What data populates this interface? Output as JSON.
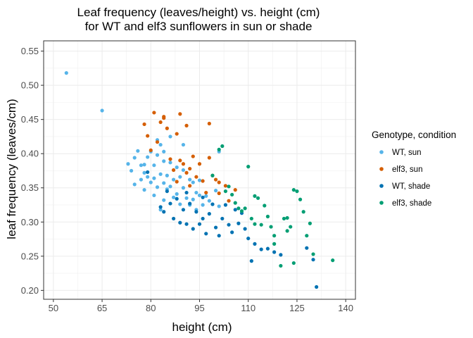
{
  "chart_data": {
    "type": "scatter",
    "title": "Leaf frequency (leaves/height) vs. height (cm)",
    "subtitle": "for WT and elf3 sunflowers in sun or shade",
    "xlabel": "height (cm)",
    "ylabel": "leaf frequency (leaves/cm)",
    "xlim": [
      47,
      143
    ],
    "ylim": [
      0.187,
      0.565
    ],
    "x_ticks": [
      50,
      65,
      80,
      95,
      110,
      125,
      140
    ],
    "x_tick_labels": [
      "50",
      "65",
      "80",
      "95",
      "110",
      "125",
      "140"
    ],
    "y_ticks": [
      0.2,
      0.25,
      0.3,
      0.35,
      0.4,
      0.45,
      0.5,
      0.55
    ],
    "y_tick_labels": [
      "0.20",
      "0.25",
      "0.30",
      "0.35",
      "0.40",
      "0.45",
      "0.50",
      "0.55"
    ],
    "grid": true,
    "legend": {
      "title": "Genotype, condition",
      "placement": "right"
    },
    "series": [
      {
        "name": "WT, sun",
        "color": "#56B4E9",
        "points": [
          [
            54,
            0.518
          ],
          [
            65,
            0.463
          ],
          [
            73,
            0.385
          ],
          [
            74,
            0.375
          ],
          [
            75,
            0.394
          ],
          [
            75,
            0.355
          ],
          [
            76,
            0.404
          ],
          [
            77,
            0.383
          ],
          [
            77,
            0.362
          ],
          [
            78,
            0.372
          ],
          [
            78,
            0.347
          ],
          [
            78,
            0.384
          ],
          [
            79,
            0.395
          ],
          [
            79,
            0.366
          ],
          [
            80,
            0.358
          ],
          [
            80,
            0.403
          ],
          [
            81,
            0.383
          ],
          [
            81,
            0.364
          ],
          [
            81,
            0.339
          ],
          [
            82,
            0.398
          ],
          [
            82,
            0.42
          ],
          [
            82,
            0.351
          ],
          [
            83,
            0.413
          ],
          [
            83,
            0.37
          ],
          [
            83,
            0.318
          ],
          [
            84,
            0.389
          ],
          [
            84,
            0.357
          ],
          [
            84,
            0.332
          ],
          [
            84,
            0.403
          ],
          [
            85,
            0.368
          ],
          [
            85,
            0.348
          ],
          [
            86,
            0.425
          ],
          [
            86,
            0.387
          ],
          [
            86,
            0.352
          ],
          [
            87,
            0.362
          ],
          [
            87,
            0.336
          ],
          [
            88,
            0.38
          ],
          [
            88,
            0.341
          ],
          [
            89,
            0.366
          ],
          [
            89,
            0.326
          ],
          [
            90,
            0.413
          ],
          [
            90,
            0.376
          ],
          [
            90,
            0.35
          ],
          [
            91,
            0.335
          ],
          [
            92,
            0.362
          ],
          [
            92,
            0.325
          ],
          [
            93,
            0.358
          ],
          [
            93,
            0.333
          ],
          [
            94,
            0.343
          ],
          [
            94,
            0.318
          ],
          [
            95,
            0.361
          ],
          [
            95,
            0.339
          ],
          [
            96,
            0.325
          ],
          [
            97,
            0.338
          ],
          [
            98,
            0.331
          ],
          [
            99,
            0.326
          ],
          [
            100,
            0.346
          ],
          [
            101,
            0.403
          ],
          [
            101,
            0.323
          ]
        ]
      },
      {
        "name": "elf3, sun",
        "color": "#D55E00",
        "points": [
          [
            78,
            0.443
          ],
          [
            79,
            0.426
          ],
          [
            80,
            0.405
          ],
          [
            81,
            0.46
          ],
          [
            82,
            0.417
          ],
          [
            83,
            0.446
          ],
          [
            84,
            0.454
          ],
          [
            84,
            0.452
          ],
          [
            85,
            0.437
          ],
          [
            86,
            0.392
          ],
          [
            87,
            0.376
          ],
          [
            88,
            0.429
          ],
          [
            88,
            0.359
          ],
          [
            89,
            0.458
          ],
          [
            89,
            0.39
          ],
          [
            90,
            0.385
          ],
          [
            91,
            0.441
          ],
          [
            91,
            0.372
          ],
          [
            92,
            0.353
          ],
          [
            92,
            0.378
          ],
          [
            93,
            0.396
          ],
          [
            94,
            0.366
          ],
          [
            95,
            0.385
          ],
          [
            96,
            0.36
          ],
          [
            97,
            0.343
          ],
          [
            98,
            0.444
          ],
          [
            98,
            0.394
          ],
          [
            99,
            0.368
          ],
          [
            100,
            0.362
          ],
          [
            101,
            0.358
          ],
          [
            101,
            0.342
          ],
          [
            103,
            0.353
          ],
          [
            104,
            0.331
          ],
          [
            106,
            0.347
          ]
        ]
      },
      {
        "name": "WT, shade",
        "color": "#0072B2",
        "points": [
          [
            79,
            0.373
          ],
          [
            83,
            0.322
          ],
          [
            84,
            0.315
          ],
          [
            85,
            0.345
          ],
          [
            86,
            0.327
          ],
          [
            87,
            0.305
          ],
          [
            88,
            0.334
          ],
          [
            89,
            0.299
          ],
          [
            90,
            0.318
          ],
          [
            91,
            0.297
          ],
          [
            91,
            0.343
          ],
          [
            92,
            0.327
          ],
          [
            93,
            0.29
          ],
          [
            94,
            0.315
          ],
          [
            95,
            0.297
          ],
          [
            96,
            0.305
          ],
          [
            96,
            0.336
          ],
          [
            97,
            0.283
          ],
          [
            98,
            0.312
          ],
          [
            99,
            0.326
          ],
          [
            100,
            0.292
          ],
          [
            101,
            0.28
          ],
          [
            102,
            0.305
          ],
          [
            103,
            0.325
          ],
          [
            104,
            0.296
          ],
          [
            105,
            0.285
          ],
          [
            106,
            0.318
          ],
          [
            107,
            0.298
          ],
          [
            108,
            0.313
          ],
          [
            109,
            0.29
          ],
          [
            110,
            0.276
          ],
          [
            112,
            0.268
          ],
          [
            114,
            0.26
          ],
          [
            116,
            0.261
          ],
          [
            118,
            0.256
          ],
          [
            120,
            0.252
          ],
          [
            128,
            0.262
          ],
          [
            130,
            0.245
          ],
          [
            131,
            0.205
          ],
          [
            111,
            0.243
          ]
        ]
      },
      {
        "name": "elf3, shade",
        "color": "#009E73",
        "points": [
          [
            99,
            0.368
          ],
          [
            101,
            0.406
          ],
          [
            102,
            0.411
          ],
          [
            103,
            0.345
          ],
          [
            104,
            0.352
          ],
          [
            105,
            0.34
          ],
          [
            106,
            0.328
          ],
          [
            107,
            0.32
          ],
          [
            108,
            0.316
          ],
          [
            109,
            0.32
          ],
          [
            110,
            0.381
          ],
          [
            111,
            0.305
          ],
          [
            112,
            0.338
          ],
          [
            112,
            0.297
          ],
          [
            113,
            0.335
          ],
          [
            114,
            0.296
          ],
          [
            115,
            0.324
          ],
          [
            116,
            0.308
          ],
          [
            117,
            0.293
          ],
          [
            118,
            0.28
          ],
          [
            120,
            0.236
          ],
          [
            121,
            0.305
          ],
          [
            122,
            0.287
          ],
          [
            122,
            0.306
          ],
          [
            123,
            0.293
          ],
          [
            124,
            0.347
          ],
          [
            125,
            0.345
          ],
          [
            126,
            0.333
          ],
          [
            127,
            0.315
          ],
          [
            128,
            0.28
          ],
          [
            129,
            0.298
          ],
          [
            130,
            0.253
          ],
          [
            136,
            0.244
          ],
          [
            118,
            0.268
          ],
          [
            124,
            0.24
          ]
        ]
      }
    ]
  }
}
